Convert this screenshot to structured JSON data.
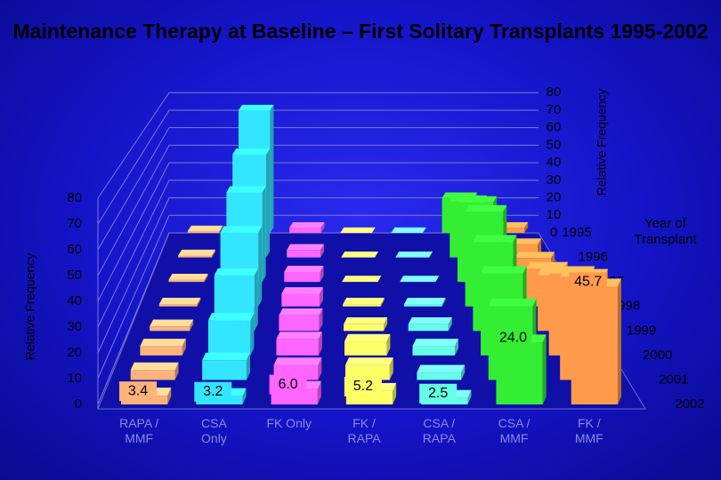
{
  "chart_data": {
    "type": "bar3d",
    "title": "Maintenance Therapy at Baseline – First Solitary Transplants 1995-2002",
    "ylabel": "Relative Frequency",
    "y2label": "Relative Frequency",
    "zlabel": "Year of Transplant",
    "categories": [
      "RAPA / MMF",
      "CSA Only",
      "FK Only",
      "FK / RAPA",
      "CSA / RAPA",
      "CSA / MMF",
      "FK / MMF"
    ],
    "colors": [
      "#ffb27a",
      "#33e6ff",
      "#ff66ff",
      "#ffff66",
      "#66ffe6",
      "#33ee33",
      "#ff9a4a"
    ],
    "series": [
      {
        "name": "1995",
        "values": [
          1,
          70,
          3,
          0,
          0,
          20,
          3
        ]
      },
      {
        "name": "1996",
        "values": [
          1,
          55,
          4,
          0,
          0,
          30,
          7
        ]
      },
      {
        "name": "1997",
        "values": [
          1,
          45,
          5,
          0,
          0,
          40,
          12
        ]
      },
      {
        "name": "1998",
        "values": [
          1,
          35,
          6,
          1,
          1,
          45,
          18
        ]
      },
      {
        "name": "1999",
        "values": [
          2,
          25,
          7,
          3,
          3,
          40,
          25
        ]
      },
      {
        "name": "2000",
        "values": [
          4,
          15,
          7,
          6,
          4,
          35,
          35
        ]
      },
      {
        "name": "2001",
        "values": [
          4,
          8,
          6,
          6,
          3,
          30,
          42
        ]
      },
      {
        "name": "2002",
        "values": [
          3.4,
          3.2,
          6.0,
          5.2,
          2.5,
          24.0,
          45.7
        ],
        "value_labels": [
          "3.4",
          "3.2",
          "6.0",
          "5.2",
          "2.5",
          "24.0",
          "45.7"
        ]
      }
    ],
    "ylim": [
      0,
      80
    ],
    "yticks": [
      0,
      10,
      20,
      30,
      40,
      50,
      60,
      70,
      80
    ],
    "y2lim": [
      0,
      80
    ],
    "y2ticks": [
      0,
      10,
      20,
      30,
      40,
      50,
      60,
      70,
      80
    ],
    "grid": true
  }
}
